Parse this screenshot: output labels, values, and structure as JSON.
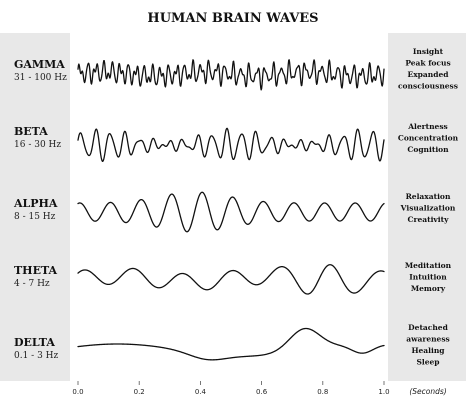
{
  "title": "HUMAN BRAIN WAVES",
  "bands": [
    {
      "name": "GAMMA",
      "range": "31 - 100 Hz",
      "effects": [
        "Insight",
        "Peak focus",
        "Expanded",
        "consciousness"
      ]
    },
    {
      "name": "BETA",
      "range": "16 - 30 Hz",
      "effects": [
        "Alertness",
        "Concentration",
        "Cognition"
      ]
    },
    {
      "name": "ALPHA",
      "range": "8 - 15 Hz",
      "effects": [
        "Relaxation",
        "Visualization",
        "Creativity"
      ]
    },
    {
      "name": "THETA",
      "range": "4 - 7 Hz",
      "effects": [
        "Meditation",
        "Intuition",
        "Memory"
      ]
    },
    {
      "name": "DELTA",
      "range": "0.1 - 3 Hz",
      "effects": [
        "Detached",
        "awareness",
        "Healing",
        "Sleep"
      ]
    }
  ],
  "x_axis": {
    "ticks": [
      "0.0",
      "0.2",
      "0.4",
      "0.6",
      "0.8",
      "1.0"
    ],
    "unit": "(Seconds)"
  },
  "colors": {
    "side_panel": "#e8e8e8",
    "wave": "#111111"
  }
}
